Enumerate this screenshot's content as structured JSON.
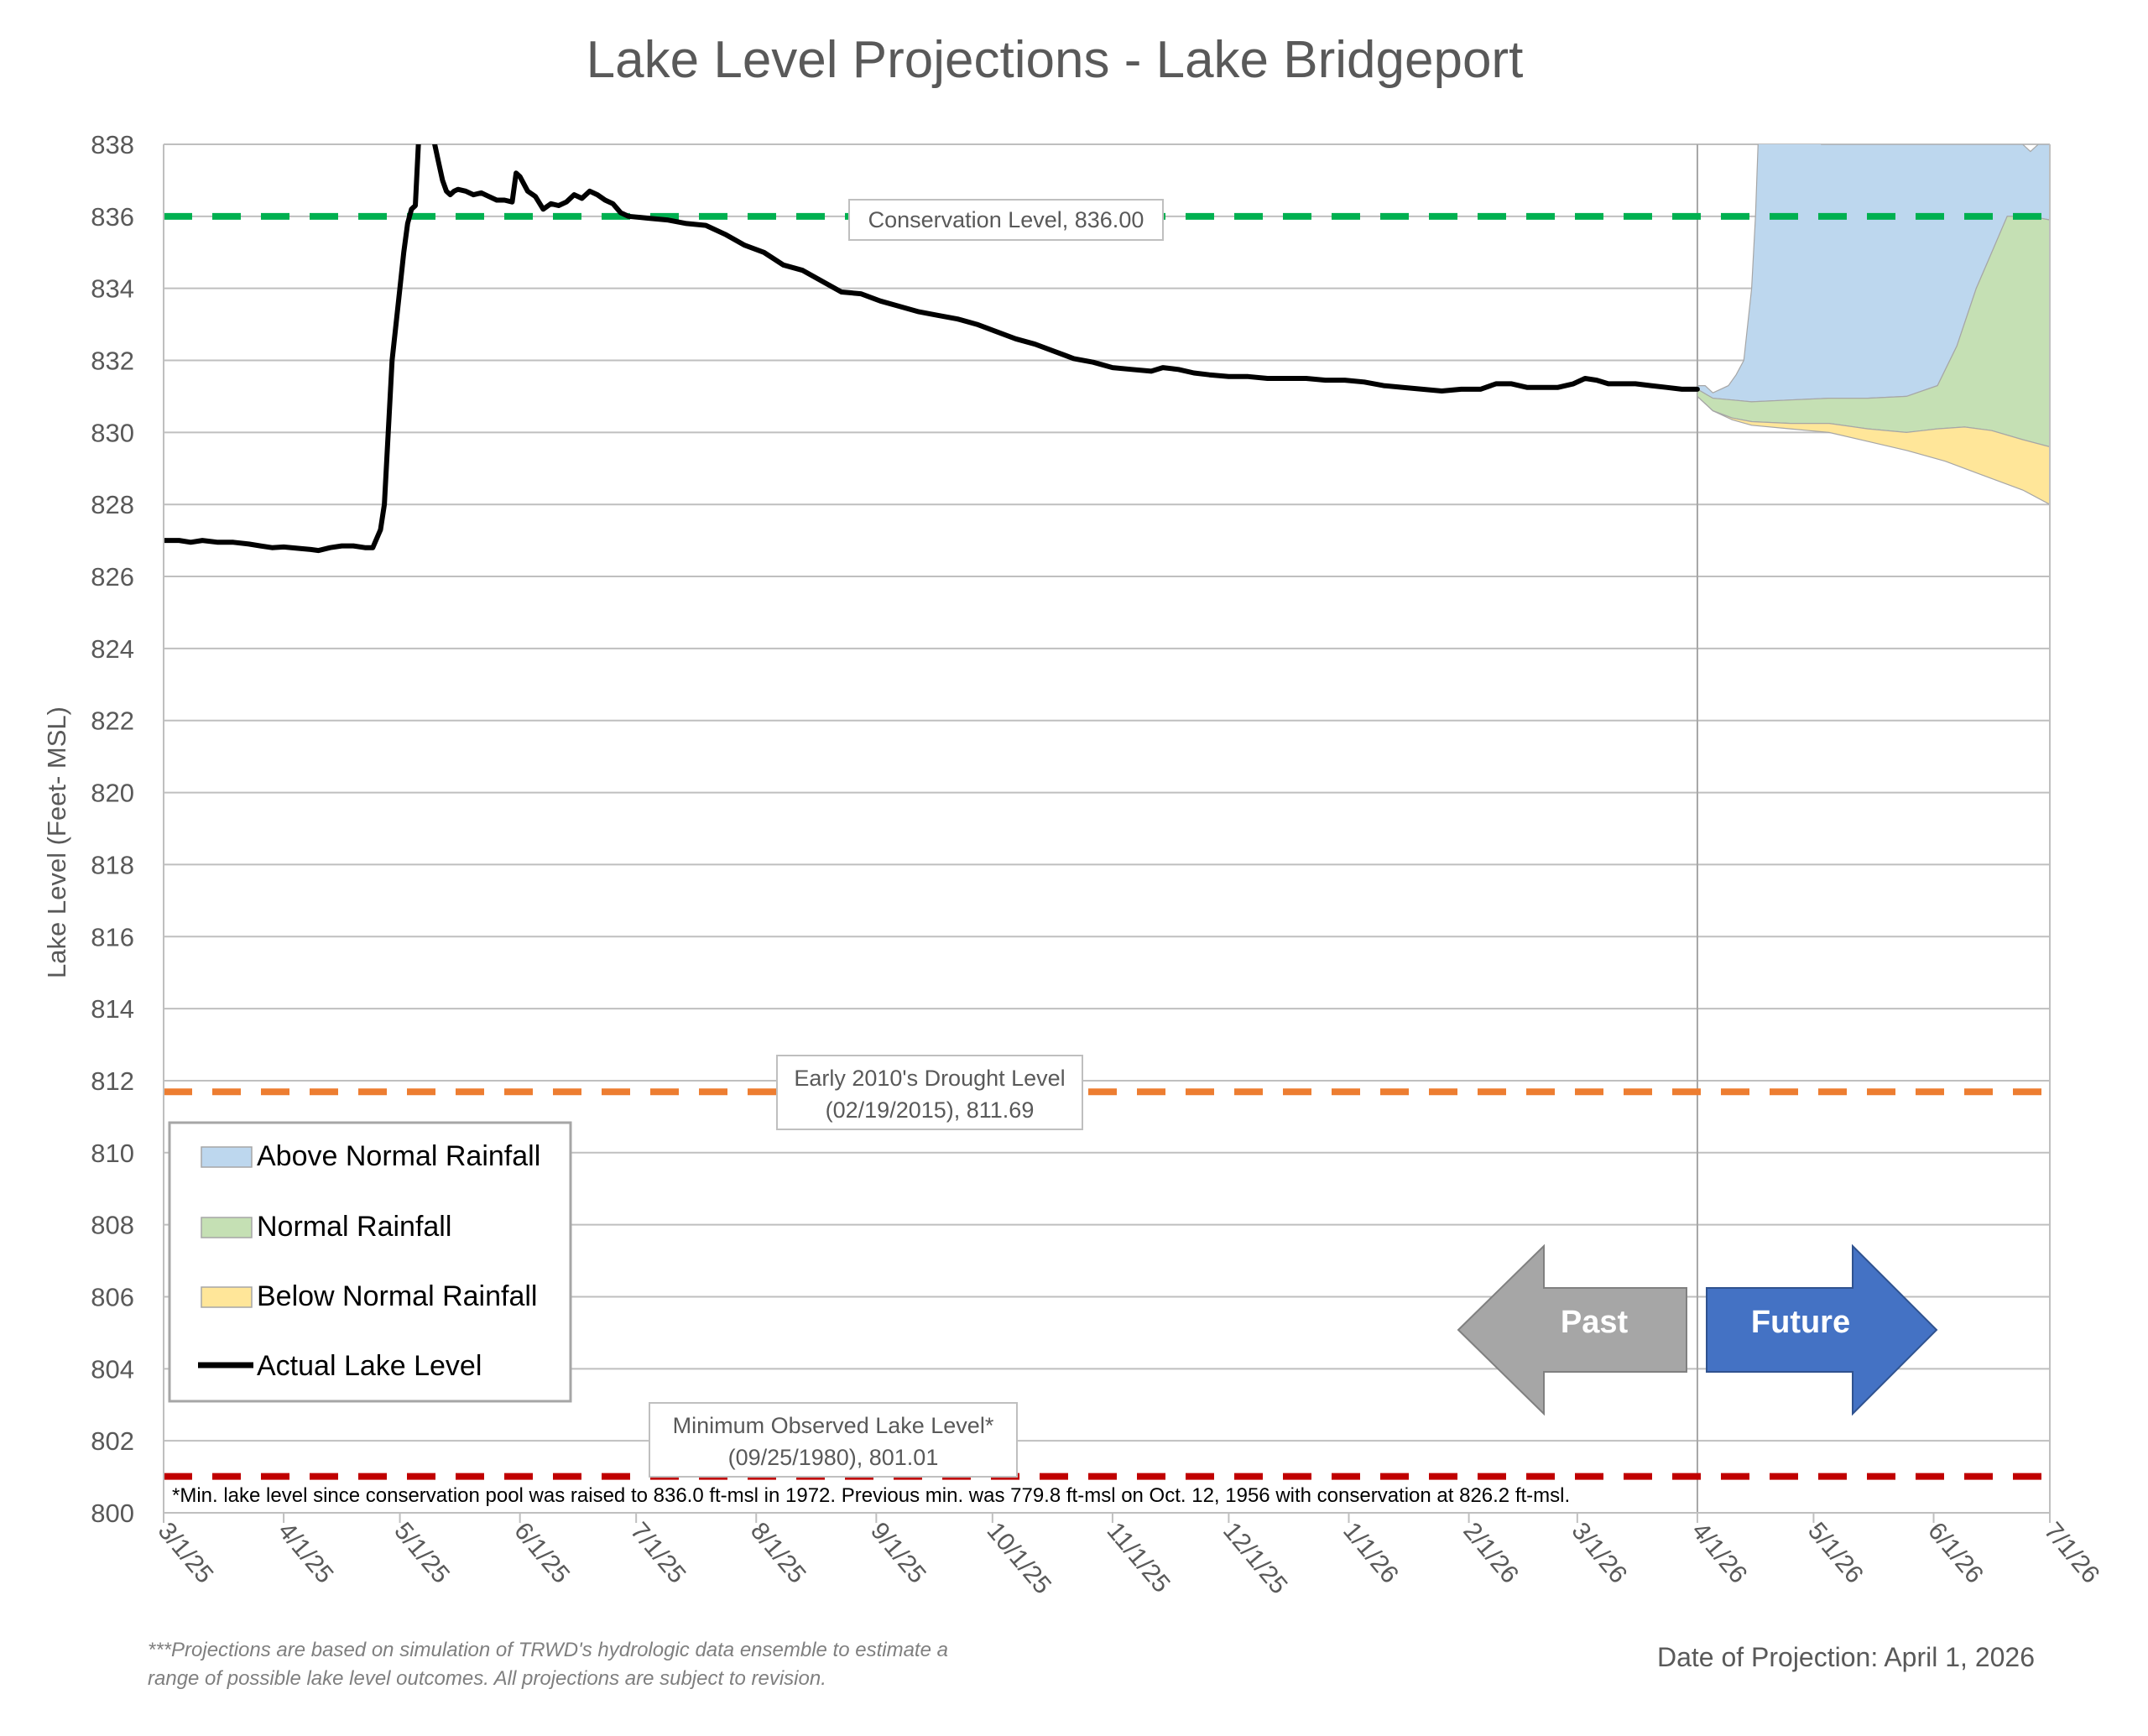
{
  "chart_data": {
    "type": "line",
    "title": "Lake Level Projections - Lake Bridgeport",
    "ylabel": "Lake Level (Feet- MSL)",
    "xlabel": "",
    "ylim": [
      800,
      838
    ],
    "y_ticks": [
      "800",
      "802",
      "804",
      "806",
      "808",
      "810",
      "812",
      "814",
      "816",
      "818",
      "820",
      "822",
      "824",
      "826",
      "828",
      "830",
      "832",
      "834",
      "836",
      "838"
    ],
    "x_ticks": [
      "3/1/25",
      "4/1/25",
      "5/1/25",
      "6/1/25",
      "7/1/25",
      "8/1/25",
      "9/1/25",
      "10/1/25",
      "11/1/25",
      "12/1/25",
      "1/1/26",
      "2/1/26",
      "3/1/26",
      "4/1/26",
      "5/1/26",
      "6/1/26",
      "7/1/26"
    ],
    "x_tick_days": [
      0,
      31,
      61,
      92,
      122,
      153,
      184,
      214,
      245,
      275,
      306,
      337,
      365,
      396,
      426,
      457,
      487
    ],
    "grid": true,
    "legend_position": "left",
    "legend": {
      "above": "Above Normal Rainfall",
      "normal": "Normal Rainfall",
      "below": "Below Normal Rainfall",
      "actual": "Actual Lake Level"
    },
    "colors": {
      "above": "#bdd7ee",
      "normal": "#c5e0b4",
      "below": "#ffe699",
      "actual": "#000000",
      "conservation": "#00b050",
      "drought": "#ed7d31",
      "minimum": "#c00000",
      "past_arrow": "#a6a6a6",
      "future_arrow": "#4472c4"
    },
    "reference_lines": [
      {
        "key": "conservation",
        "value": 836.0,
        "label": "Conservation Level, 836.00"
      },
      {
        "key": "drought",
        "value": 811.69,
        "label_line1": "Early 2010's Drought Level",
        "label_line2": "(02/19/2015), 811.69"
      },
      {
        "key": "minimum",
        "value": 801.01,
        "label_line1": "Minimum Observed Lake Level*",
        "label_line2": "(09/25/1980), 801.01"
      }
    ],
    "projection_start_day": 396,
    "series": [
      {
        "name": "Actual Lake Level",
        "points": [
          [
            0,
            827.0
          ],
          [
            4,
            827.0
          ],
          [
            7,
            826.95
          ],
          [
            10,
            827.0
          ],
          [
            14,
            826.95
          ],
          [
            18,
            826.95
          ],
          [
            22,
            826.9
          ],
          [
            25,
            826.85
          ],
          [
            28,
            826.8
          ],
          [
            31,
            826.82
          ],
          [
            35,
            826.78
          ],
          [
            38,
            826.75
          ],
          [
            40,
            826.72
          ],
          [
            43,
            826.8
          ],
          [
            46,
            826.85
          ],
          [
            49,
            826.85
          ],
          [
            52,
            826.8
          ],
          [
            54,
            826.8
          ],
          [
            56,
            827.3
          ],
          [
            57,
            828.0
          ],
          [
            58,
            830.0
          ],
          [
            59,
            832.0
          ],
          [
            61,
            834.0
          ],
          [
            62,
            835.0
          ],
          [
            63,
            835.8
          ],
          [
            64,
            836.2
          ],
          [
            65,
            836.3
          ],
          [
            66,
            838.5
          ],
          [
            67,
            840.0
          ],
          [
            69,
            840.0
          ],
          [
            70,
            838.0
          ],
          [
            71,
            837.5
          ],
          [
            72,
            837.0
          ],
          [
            73,
            836.7
          ],
          [
            74,
            836.6
          ],
          [
            75,
            836.7
          ],
          [
            76,
            836.75
          ],
          [
            78,
            836.7
          ],
          [
            80,
            836.6
          ],
          [
            82,
            836.65
          ],
          [
            84,
            836.55
          ],
          [
            86,
            836.45
          ],
          [
            88,
            836.45
          ],
          [
            90,
            836.4
          ],
          [
            91,
            837.2
          ],
          [
            92,
            837.1
          ],
          [
            94,
            836.7
          ],
          [
            96,
            836.55
          ],
          [
            98,
            836.2
          ],
          [
            100,
            836.35
          ],
          [
            102,
            836.3
          ],
          [
            104,
            836.4
          ],
          [
            106,
            836.6
          ],
          [
            108,
            836.5
          ],
          [
            110,
            836.7
          ],
          [
            112,
            836.6
          ],
          [
            114,
            836.45
          ],
          [
            116,
            836.35
          ],
          [
            118,
            836.1
          ],
          [
            120,
            836.0
          ],
          [
            125,
            835.95
          ],
          [
            130,
            835.9
          ],
          [
            135,
            835.8
          ],
          [
            140,
            835.75
          ],
          [
            145,
            835.5
          ],
          [
            150,
            835.2
          ],
          [
            155,
            835.0
          ],
          [
            160,
            834.65
          ],
          [
            165,
            834.5
          ],
          [
            170,
            834.2
          ],
          [
            175,
            833.9
          ],
          [
            180,
            833.85
          ],
          [
            185,
            833.65
          ],
          [
            190,
            833.5
          ],
          [
            195,
            833.35
          ],
          [
            200,
            833.25
          ],
          [
            205,
            833.15
          ],
          [
            210,
            833.0
          ],
          [
            215,
            832.8
          ],
          [
            220,
            832.6
          ],
          [
            225,
            832.45
          ],
          [
            230,
            832.25
          ],
          [
            235,
            832.05
          ],
          [
            240,
            831.95
          ],
          [
            245,
            831.8
          ],
          [
            250,
            831.75
          ],
          [
            255,
            831.7
          ],
          [
            258,
            831.8
          ],
          [
            262,
            831.75
          ],
          [
            266,
            831.65
          ],
          [
            270,
            831.6
          ],
          [
            275,
            831.55
          ],
          [
            280,
            831.55
          ],
          [
            285,
            831.5
          ],
          [
            290,
            831.5
          ],
          [
            295,
            831.5
          ],
          [
            300,
            831.45
          ],
          [
            305,
            831.45
          ],
          [
            310,
            831.4
          ],
          [
            315,
            831.3
          ],
          [
            320,
            831.25
          ],
          [
            325,
            831.2
          ],
          [
            330,
            831.15
          ],
          [
            335,
            831.2
          ],
          [
            340,
            831.2
          ],
          [
            344,
            831.35
          ],
          [
            348,
            831.35
          ],
          [
            352,
            831.25
          ],
          [
            356,
            831.25
          ],
          [
            360,
            831.25
          ],
          [
            364,
            831.35
          ],
          [
            367,
            831.5
          ],
          [
            370,
            831.45
          ],
          [
            373,
            831.35
          ],
          [
            376,
            831.35
          ],
          [
            380,
            831.35
          ],
          [
            384,
            831.3
          ],
          [
            388,
            831.25
          ],
          [
            392,
            831.2
          ],
          [
            396,
            831.2
          ]
        ]
      },
      {
        "name": "Above Normal Rainfall",
        "upper": [
          [
            396,
            831.3
          ],
          [
            398,
            831.3
          ],
          [
            400,
            831.1
          ],
          [
            402,
            831.2
          ],
          [
            404,
            831.3
          ],
          [
            406,
            831.6
          ],
          [
            408,
            832.0
          ],
          [
            410,
            834.0
          ],
          [
            411,
            836.0
          ],
          [
            412,
            839.0
          ],
          [
            425,
            839.0
          ],
          [
            426,
            838.2
          ],
          [
            428,
            838.0
          ],
          [
            440,
            838.0
          ],
          [
            480,
            838.0
          ],
          [
            482,
            837.8
          ],
          [
            484,
            838.0
          ],
          [
            487,
            838.0
          ]
        ],
        "lower": [
          [
            396,
            831.2
          ],
          [
            400,
            830.95
          ],
          [
            405,
            830.9
          ],
          [
            410,
            830.85
          ],
          [
            420,
            830.9
          ],
          [
            430,
            830.95
          ],
          [
            440,
            830.95
          ],
          [
            450,
            831.0
          ],
          [
            458,
            831.3
          ],
          [
            463,
            832.4
          ],
          [
            468,
            834.0
          ],
          [
            472,
            835.0
          ],
          [
            476,
            836.0
          ],
          [
            482,
            836.0
          ],
          [
            487,
            835.9
          ]
        ]
      },
      {
        "name": "Normal Rainfall",
        "upper": [
          [
            396,
            831.2
          ],
          [
            400,
            830.95
          ],
          [
            405,
            830.9
          ],
          [
            410,
            830.85
          ],
          [
            420,
            830.9
          ],
          [
            430,
            830.95
          ],
          [
            440,
            830.95
          ],
          [
            450,
            831.0
          ],
          [
            458,
            831.3
          ],
          [
            463,
            832.4
          ],
          [
            468,
            834.0
          ],
          [
            472,
            835.0
          ],
          [
            476,
            836.0
          ],
          [
            482,
            836.0
          ],
          [
            487,
            835.9
          ]
        ],
        "lower": [
          [
            396,
            831.0
          ],
          [
            400,
            830.6
          ],
          [
            405,
            830.4
          ],
          [
            410,
            830.3
          ],
          [
            420,
            830.25
          ],
          [
            430,
            830.25
          ],
          [
            440,
            830.1
          ],
          [
            450,
            830.0
          ],
          [
            458,
            830.1
          ],
          [
            465,
            830.15
          ],
          [
            472,
            830.05
          ],
          [
            480,
            829.8
          ],
          [
            487,
            829.6
          ]
        ]
      },
      {
        "name": "Below Normal Rainfall",
        "upper": [
          [
            396,
            831.0
          ],
          [
            400,
            830.6
          ],
          [
            405,
            830.4
          ],
          [
            410,
            830.3
          ],
          [
            420,
            830.25
          ],
          [
            430,
            830.25
          ],
          [
            440,
            830.1
          ],
          [
            450,
            830.0
          ],
          [
            458,
            830.1
          ],
          [
            465,
            830.15
          ],
          [
            472,
            830.05
          ],
          [
            480,
            829.8
          ],
          [
            487,
            829.6
          ]
        ],
        "lower": [
          [
            396,
            831.0
          ],
          [
            400,
            830.6
          ],
          [
            405,
            830.35
          ],
          [
            410,
            830.2
          ],
          [
            420,
            830.1
          ],
          [
            430,
            830.0
          ],
          [
            440,
            829.75
          ],
          [
            450,
            829.5
          ],
          [
            460,
            829.2
          ],
          [
            470,
            828.8
          ],
          [
            480,
            828.4
          ],
          [
            487,
            828.0
          ]
        ]
      }
    ]
  },
  "arrows": {
    "past": "Past",
    "future": "Future"
  },
  "footnote_min": "*Min. lake level since conservation pool was raised to 836.0 ft-msl in 1972.  Previous min. was 779.8 ft-msl on Oct. 12, 1956 with conservation at 826.2 ft-msl.",
  "footnote_projection_line1": "***Projections are based on simulation of TRWD's hydrologic data ensemble to estimate a",
  "footnote_projection_line2": "range of possible lake level outcomes.  All projections are subject to revision.",
  "projection_date": "Date of Projection: April 1, 2026"
}
